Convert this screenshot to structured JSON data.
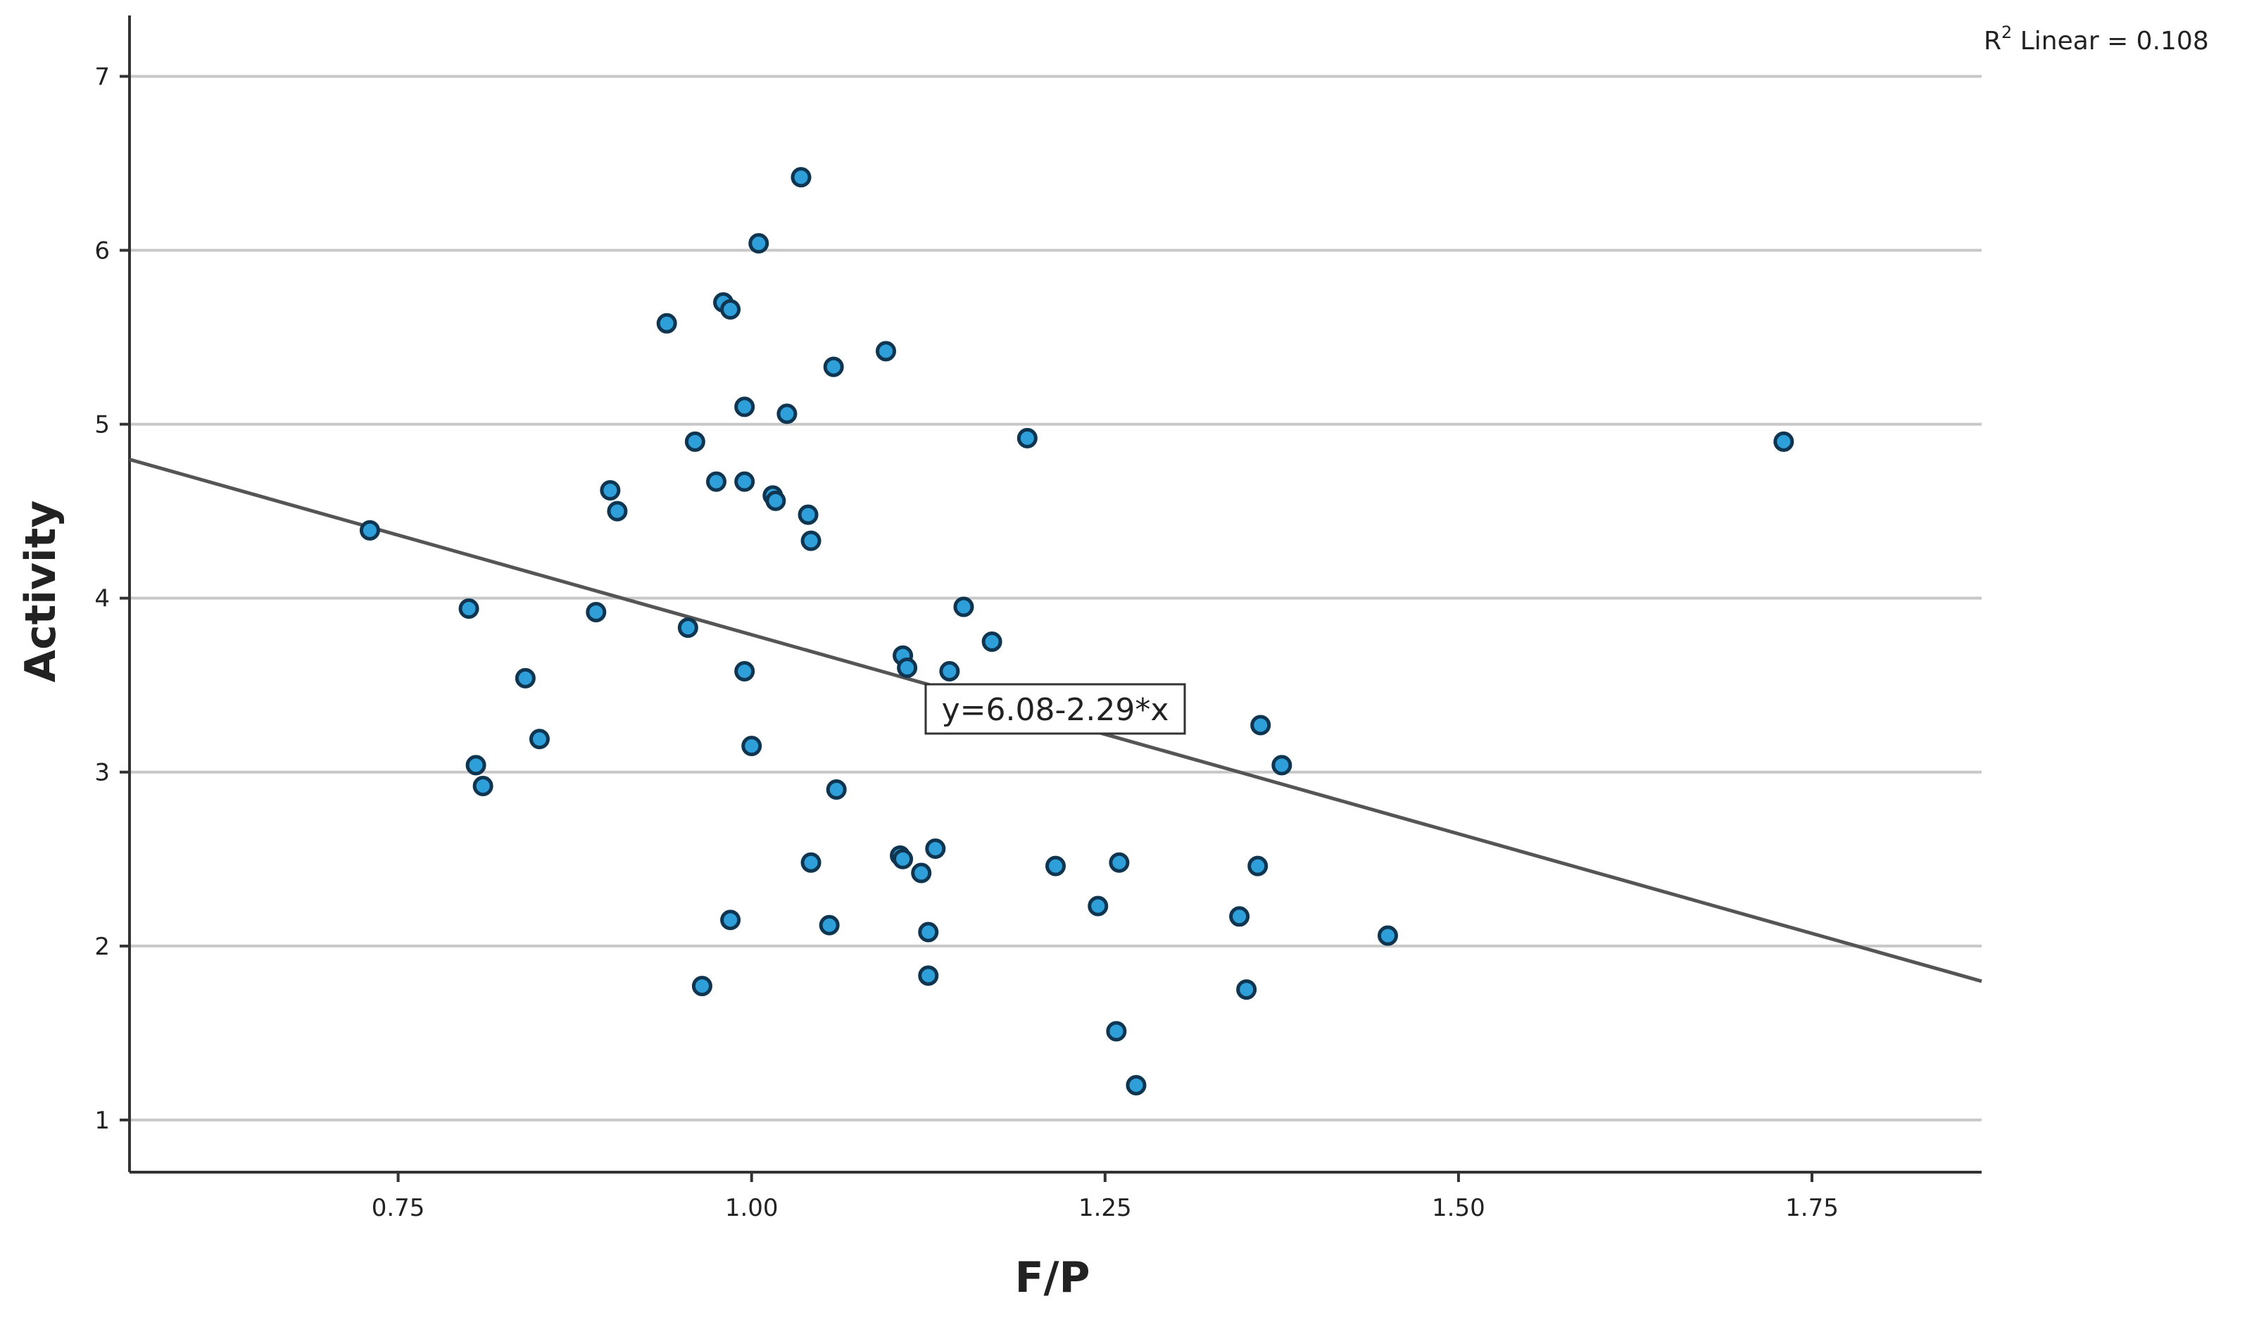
{
  "chart_data": {
    "type": "scatter",
    "xlabel": "F/P",
    "ylabel": "Activity",
    "xlim": [
      0.56,
      1.87
    ],
    "ylim": [
      0.7,
      7.35
    ],
    "xticks": [
      "0.75",
      "1.00",
      "1.25",
      "1.50",
      "1.75"
    ],
    "yticks": [
      "1",
      "2",
      "3",
      "4",
      "5",
      "6",
      "7"
    ],
    "grid": "horizontal",
    "marker_color": "#2e9fd8",
    "marker_edge_color": "#0f3550",
    "line_color": "#555555",
    "fit_line": {
      "intercept": 6.08,
      "slope": -2.29
    },
    "r2_label": {
      "prefix": "R",
      "sup": "2",
      "text": " Linear = 0.108"
    },
    "equation_label": "y=6.08-2.29*x",
    "points": [
      [
        0.73,
        4.39
      ],
      [
        0.8,
        3.94
      ],
      [
        0.805,
        3.04
      ],
      [
        0.81,
        2.92
      ],
      [
        0.84,
        3.54
      ],
      [
        0.85,
        3.19
      ],
      [
        0.89,
        3.92
      ],
      [
        0.9,
        4.62
      ],
      [
        0.905,
        4.5
      ],
      [
        0.94,
        5.58
      ],
      [
        0.955,
        3.83
      ],
      [
        0.96,
        4.9
      ],
      [
        0.965,
        1.77
      ],
      [
        0.975,
        4.67
      ],
      [
        0.98,
        5.7
      ],
      [
        0.985,
        5.66
      ],
      [
        0.985,
        2.15
      ],
      [
        0.995,
        5.1
      ],
      [
        0.995,
        4.67
      ],
      [
        0.995,
        3.58
      ],
      [
        1.0,
        3.15
      ],
      [
        1.005,
        6.04
      ],
      [
        1.015,
        4.59
      ],
      [
        1.017,
        4.56
      ],
      [
        1.025,
        5.06
      ],
      [
        1.035,
        6.42
      ],
      [
        1.04,
        4.48
      ],
      [
        1.042,
        4.33
      ],
      [
        1.042,
        2.48
      ],
      [
        1.055,
        2.12
      ],
      [
        1.058,
        5.33
      ],
      [
        1.06,
        2.9
      ],
      [
        1.095,
        5.42
      ],
      [
        1.105,
        2.52
      ],
      [
        1.107,
        2.5
      ],
      [
        1.107,
        3.67
      ],
      [
        1.11,
        3.6
      ],
      [
        1.12,
        2.42
      ],
      [
        1.125,
        2.08
      ],
      [
        1.125,
        1.83
      ],
      [
        1.13,
        2.56
      ],
      [
        1.14,
        3.58
      ],
      [
        1.15,
        3.95
      ],
      [
        1.17,
        3.75
      ],
      [
        1.195,
        4.92
      ],
      [
        1.215,
        2.46
      ],
      [
        1.245,
        2.23
      ],
      [
        1.258,
        1.51
      ],
      [
        1.26,
        2.48
      ],
      [
        1.272,
        1.2
      ],
      [
        1.345,
        2.17
      ],
      [
        1.35,
        1.75
      ],
      [
        1.358,
        2.46
      ],
      [
        1.36,
        3.27
      ],
      [
        1.375,
        3.04
      ],
      [
        1.45,
        2.06
      ],
      [
        1.73,
        4.9
      ]
    ]
  }
}
